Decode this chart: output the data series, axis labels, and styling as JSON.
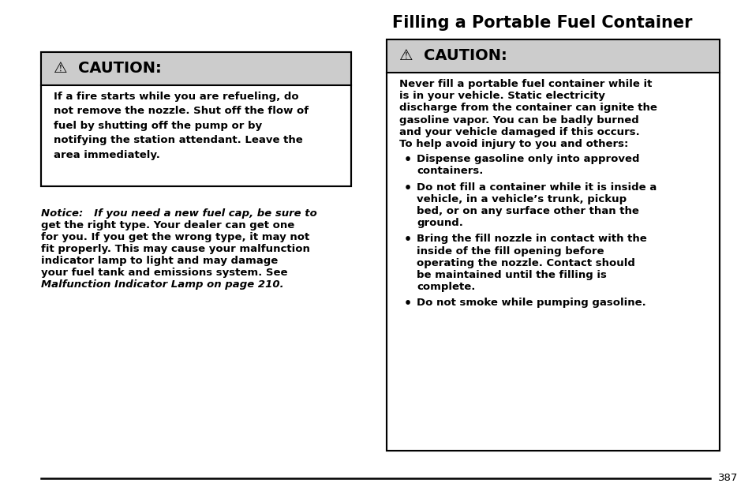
{
  "bg_color": "#ffffff",
  "title": "Filling a Portable Fuel Container",
  "page_number": "387",
  "left_caution_header": "⚠  CAUTION:",
  "left_caution_body": "If a fire starts while you are refueling, do\nnot remove the nozzle. Shut off the flow of\nfuel by shutting off the pump or by\nnotifying the station attendant. Leave the\narea immediately.",
  "notice_line1": "Notice:   If you need a new fuel cap, be sure to",
  "notice_line2": "get the right type. Your dealer can get one",
  "notice_line3": "for you. If you get the wrong type, it may not",
  "notice_line4": "fit properly. This may cause your malfunction",
  "notice_line5": "indicator lamp to light and may damage",
  "notice_line6": "your fuel tank and emissions system. See",
  "notice_line7": "Malfunction Indicator Lamp on page 210.",
  "right_caution_header": "⚠  CAUTION:",
  "right_body_lines": [
    "Never fill a portable fuel container while it",
    "is in your vehicle. Static electricity",
    "discharge from the container can ignite the",
    "gasoline vapor. You can be badly burned",
    "and your vehicle damaged if this occurs.",
    "To help avoid injury to you and others:"
  ],
  "bullet_points": [
    [
      "Dispense gasoline only into approved",
      "containers."
    ],
    [
      "Do not fill a container while it is inside a",
      "vehicle, in a vehicle’s trunk, pickup",
      "bed, or on any surface other than the",
      "ground."
    ],
    [
      "Bring the fill nozzle in contact with the",
      "inside of the fill opening before",
      "operating the nozzle. Contact should",
      "be maintained until the filling is",
      "complete."
    ],
    [
      "Do not smoke while pumping gasoline."
    ]
  ],
  "caution_bg": "#cccccc",
  "box_border": "#000000",
  "text_color": "#000000",
  "caution_font_size": 14,
  "body_font_size": 9.5,
  "title_font_size": 15,
  "notice_font_size": 9.5
}
